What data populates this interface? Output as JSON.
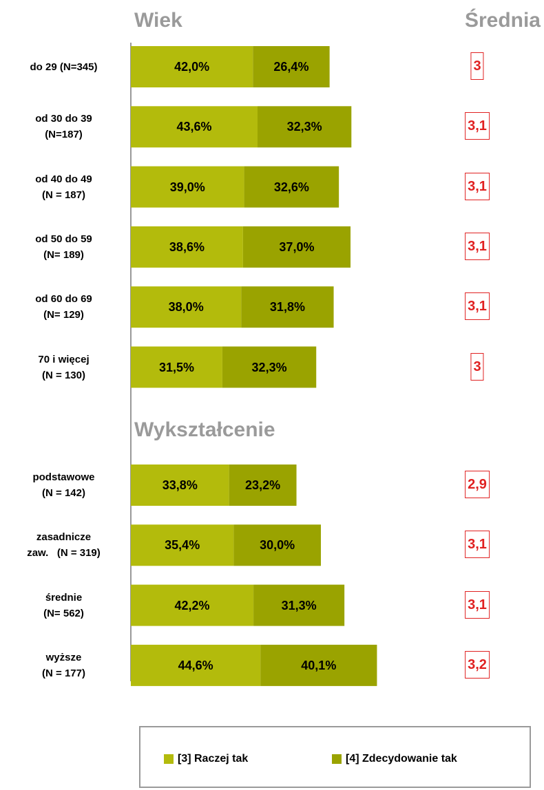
{
  "chart_data": {
    "type": "bar",
    "orientation": "horizontal",
    "average_title": "Średnia",
    "xlim": [
      0,
      100
    ],
    "groups": [
      {
        "title": "Wiek",
        "categories": [
          "do 29 (N=345)",
          "od 30 do 39\n(N=187)",
          "od 40 do 49\n(N = 187)",
          "od 50 do 59\n(N= 189)",
          "od 60 do 69\n(N= 129)",
          "70 i więcej\n(N = 130)"
        ]
      },
      {
        "title": "Wykształcenie",
        "categories": [
          "podstawowe\n(N = 142)",
          "zasadnicze\nzaw.   (N = 319)",
          "średnie\n(N= 562)",
          "wyższe\n(N = 177)"
        ]
      }
    ],
    "series": [
      {
        "name": "[3] Raczej tak",
        "color": "#b3bb0c",
        "values": [
          42.0,
          43.6,
          39.0,
          38.6,
          38.0,
          31.5,
          33.8,
          35.4,
          42.2,
          44.6
        ],
        "value_labels": [
          "42,0%",
          "43,6%",
          "39,0%",
          "38,6%",
          "38,0%",
          "31,5%",
          "33,8%",
          "35,4%",
          "42,2%",
          "44,6%"
        ]
      },
      {
        "name": "[4] Zdecydowanie tak",
        "color": "#9aa300",
        "values": [
          26.4,
          32.3,
          32.6,
          37.0,
          31.8,
          32.3,
          23.2,
          30.0,
          31.3,
          40.1
        ],
        "value_labels": [
          "26,4%",
          "32,3%",
          "32,6%",
          "37,0%",
          "31,8%",
          "32,3%",
          "23,2%",
          "30,0%",
          "31,3%",
          "40,1%"
        ]
      }
    ],
    "averages": [
      3,
      3.1,
      3.1,
      3.1,
      3.1,
      3,
      2.9,
      3.1,
      3.1,
      3.2
    ],
    "average_labels": [
      "3",
      "3,1",
      "3,1",
      "3,1",
      "3,1",
      "3",
      "2,9",
      "3,1",
      "3,1",
      "3,2"
    ]
  }
}
